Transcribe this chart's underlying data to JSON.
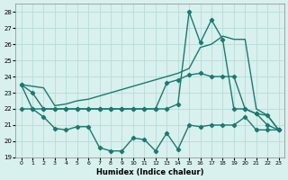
{
  "xlabel": "Humidex (Indice chaleur)",
  "background_color": "#d8f0ee",
  "grid_color": "#b8dbd8",
  "line_color": "#1a7a6e",
  "xlim": [
    -0.5,
    23.5
  ],
  "ylim": [
    19,
    28.5
  ],
  "yticks": [
    19,
    20,
    21,
    22,
    23,
    24,
    25,
    26,
    27,
    28
  ],
  "xticks": [
    0,
    1,
    2,
    3,
    4,
    5,
    6,
    7,
    8,
    9,
    10,
    11,
    12,
    13,
    14,
    15,
    16,
    17,
    18,
    19,
    20,
    21,
    22,
    23
  ],
  "series": [
    {
      "x": [
        0,
        1,
        2,
        3,
        4,
        5,
        6,
        7,
        8,
        9,
        10,
        11,
        12,
        13,
        14,
        15,
        16,
        17,
        18,
        19,
        20,
        21,
        22,
        23
      ],
      "y": [
        23.5,
        23.4,
        23.3,
        22.2,
        22.3,
        22.5,
        22.6,
        22.8,
        23.0,
        23.2,
        23.4,
        23.6,
        23.8,
        24.0,
        24.2,
        24.5,
        25.8,
        26.0,
        26.5,
        26.3,
        26.3,
        22.0,
        21.6,
        20.7
      ],
      "has_markers": false,
      "linewidth": 1.0
    },
    {
      "x": [
        0,
        1,
        2,
        3,
        4,
        5,
        6,
        7,
        8,
        9,
        10,
        11,
        12,
        13,
        14,
        15,
        16,
        17,
        18,
        19,
        20,
        21,
        22,
        23
      ],
      "y": [
        23.5,
        23.0,
        22.0,
        22.0,
        22.0,
        22.0,
        22.0,
        22.0,
        22.0,
        22.0,
        22.0,
        22.0,
        22.0,
        22.0,
        22.3,
        28.0,
        26.1,
        27.5,
        26.3,
        22.0,
        22.0,
        21.7,
        21.6,
        20.7
      ],
      "has_markers": true,
      "linewidth": 1.0
    },
    {
      "x": [
        0,
        1,
        2,
        3,
        4,
        5,
        6,
        7,
        8,
        9,
        10,
        11,
        12,
        13,
        14,
        15,
        16,
        17,
        18,
        19,
        20,
        21,
        22,
        23
      ],
      "y": [
        22.0,
        22.0,
        22.0,
        22.0,
        22.0,
        22.0,
        22.0,
        22.0,
        22.0,
        22.0,
        22.0,
        22.0,
        22.0,
        23.6,
        23.8,
        24.1,
        24.2,
        24.0,
        24.0,
        24.0,
        22.0,
        21.7,
        21.0,
        20.7
      ],
      "has_markers": true,
      "linewidth": 1.0
    },
    {
      "x": [
        0,
        1,
        2,
        3,
        4,
        5,
        6,
        7,
        8,
        9,
        10,
        11,
        12,
        13,
        14,
        15,
        16,
        17,
        18,
        19,
        20,
        21,
        22,
        23
      ],
      "y": [
        23.5,
        22.0,
        21.5,
        20.8,
        20.7,
        20.9,
        20.9,
        19.6,
        19.4,
        19.4,
        20.2,
        20.1,
        19.4,
        20.5,
        19.5,
        21.0,
        20.9,
        21.0,
        21.0,
        21.0,
        21.5,
        20.7,
        20.7,
        20.7
      ],
      "has_markers": true,
      "linewidth": 1.0
    }
  ]
}
